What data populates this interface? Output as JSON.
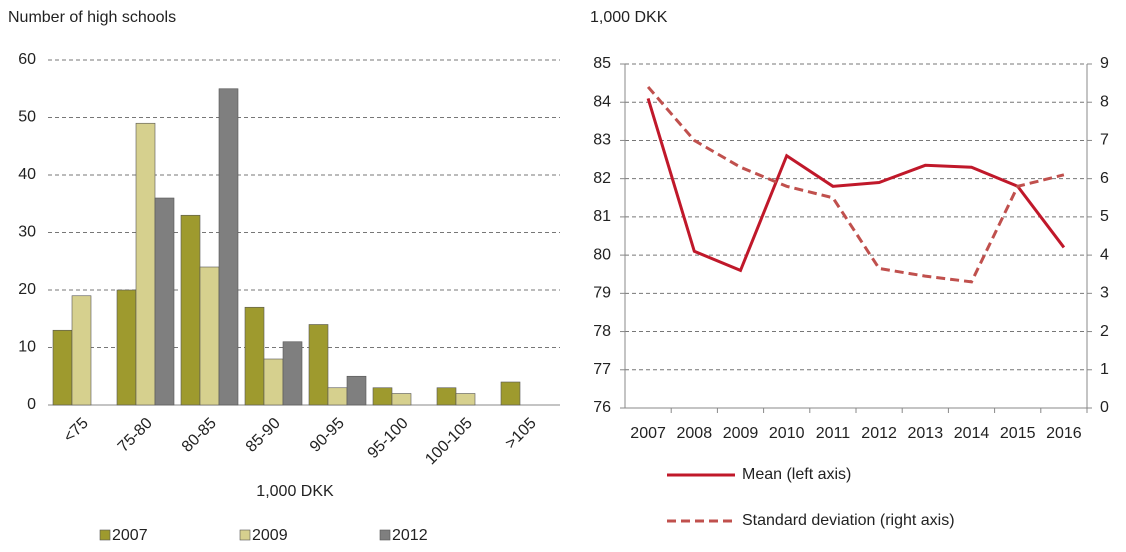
{
  "chart_data": [
    {
      "type": "bar",
      "ylabel": "Number of high schools",
      "xlabel": "1,000 DKK",
      "categories": [
        "<75",
        "75-80",
        "80-85",
        "85-90",
        "90-95",
        "95-100",
        "100-105",
        ">105"
      ],
      "series": [
        {
          "name": "2007",
          "color": "#9e9a2e",
          "values": [
            13,
            20,
            33,
            17,
            14,
            3,
            3,
            4
          ]
        },
        {
          "name": "2009",
          "color": "#d6d08e",
          "values": [
            19,
            49,
            24,
            8,
            3,
            2,
            2,
            null
          ]
        },
        {
          "name": "2012",
          "color": "#7f7f7f",
          "values": [
            null,
            36,
            55,
            11,
            5,
            null,
            null,
            null
          ]
        }
      ],
      "ylim": [
        0,
        60
      ],
      "yticks": [
        0,
        10,
        20,
        30,
        40,
        50,
        60
      ],
      "grid": true,
      "legend": "bottom"
    },
    {
      "type": "line",
      "ylabel": "1,000 DKK",
      "categories": [
        "2007",
        "2008",
        "2009",
        "2010",
        "2011",
        "2012",
        "2013",
        "2014",
        "2015",
        "2016"
      ],
      "series": [
        {
          "name": "Mean (left axis)",
          "color": "#c0182a",
          "dash": false,
          "values": [
            84.1,
            80.1,
            79.6,
            82.6,
            81.8,
            81.9,
            82.35,
            82.3,
            81.8,
            80.2
          ]
        },
        {
          "name": "Standard deviation (right axis)",
          "color": "#c0504d",
          "dash": true,
          "axis": "y2",
          "values": [
            8.4,
            7.0,
            6.3,
            5.8,
            5.5,
            3.65,
            3.45,
            3.3,
            5.8,
            6.1
          ]
        }
      ],
      "ylim": [
        76,
        85
      ],
      "yticks": [
        76,
        77,
        78,
        79,
        80,
        81,
        82,
        83,
        84,
        85
      ],
      "y2lim": [
        0,
        9
      ],
      "y2ticks": [
        0,
        1,
        2,
        3,
        4,
        5,
        6,
        7,
        8,
        9
      ],
      "grid": true,
      "legend": "bottom"
    }
  ]
}
